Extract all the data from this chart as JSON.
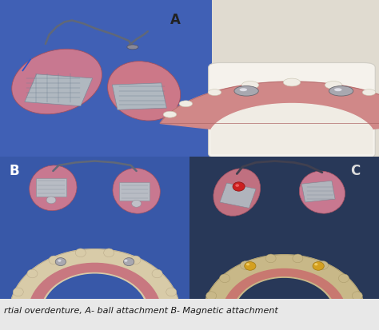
{
  "figure_width": 4.74,
  "figure_height": 4.13,
  "dpi": 100,
  "bg_color": "#e8e8e8",
  "caption": "rtial overdenture, A- ball attachment B- Magnetic attachment",
  "caption_color": "#1a1a1a",
  "caption_fontsize": 8.0,
  "caption_style": "italic",
  "panel_A": {
    "label": "A",
    "label_color": "#222222",
    "label_fontsize": 12,
    "label_fontweight": "bold",
    "bg_left": "#4060b8",
    "bg_right": "#ddd8cc"
  },
  "panel_B": {
    "label": "B",
    "label_color": "#ffffff",
    "label_fontsize": 12,
    "label_fontweight": "bold",
    "bg": "#3a5ab0"
  },
  "panel_C": {
    "label": "C",
    "label_color": "#dddddd",
    "label_fontsize": 12,
    "label_fontweight": "bold",
    "bg": "#2a3a60"
  },
  "denture_color": "#c87890",
  "denture_edge": "#a05060",
  "metal_color": "#909090",
  "metal_edge": "#606060",
  "wire_color": "#505060",
  "gum_color": "#d08090",
  "gum_edge": "#b06070",
  "tooth_color": "#f0ece0",
  "tooth_edge": "#c8c4a0",
  "model_base_color": "#f0ece0",
  "model_base_edge": "#d0ccc0",
  "ball_color": "#a0a0a8",
  "ball_edge": "#606068",
  "gold_color": "#d4a020",
  "gold_edge": "#a07810",
  "red_color": "#cc2020",
  "red_edge": "#881010"
}
